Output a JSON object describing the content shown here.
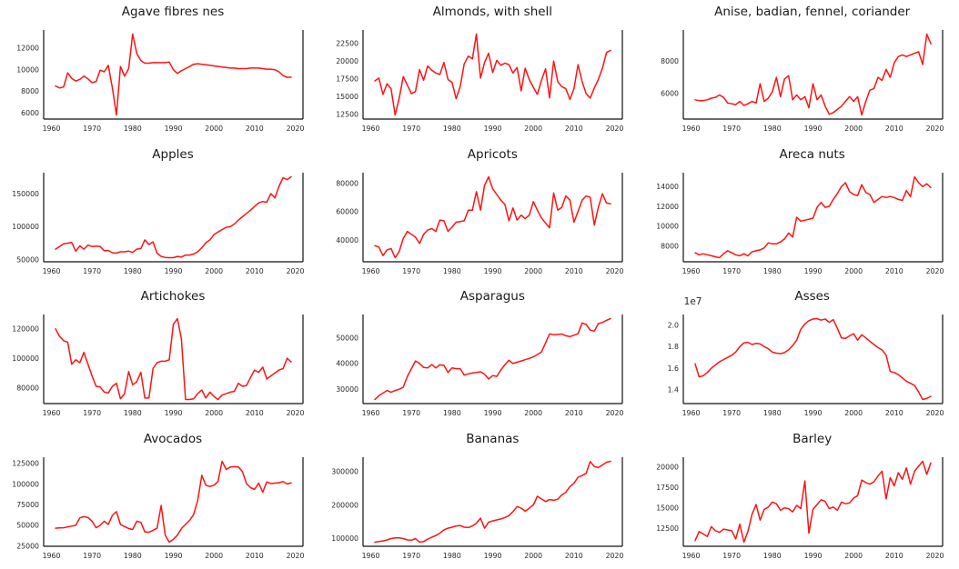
{
  "figure": {
    "background": "#ffffff",
    "line_color": "#ff1212",
    "spine_color": "#111111",
    "tick_color": "#262626",
    "title_color": "#1a1a1a"
  },
  "axis": {
    "x_start": 1961,
    "x_step": 1,
    "xlim": [
      1958.1,
      2021.9
    ],
    "xticks": [
      1960,
      1970,
      1980,
      1990,
      2000,
      2010,
      2020
    ]
  },
  "chart_data": [
    {
      "type": "line",
      "title": "Agave fibres nes",
      "ylim": [
        5425,
        13675
      ],
      "ytick_values": [
        6000,
        8000,
        10000,
        12000
      ],
      "ytick_labels": [
        "6000",
        "8000",
        "10000",
        "12000"
      ],
      "x_start": 1961,
      "values": [
        8500,
        8300,
        8400,
        9700,
        9200,
        8950,
        9100,
        9400,
        9150,
        8800,
        8900,
        9950,
        9800,
        10400,
        8300,
        5800,
        10300,
        9400,
        10100,
        13300,
        11500,
        10850,
        10600,
        10600,
        10650,
        10650,
        10650,
        10650,
        10700,
        10000,
        9650,
        9900,
        10100,
        10300,
        10500,
        10550,
        10500,
        10450,
        10400,
        10350,
        10300,
        10250,
        10200,
        10150,
        10150,
        10100,
        10100,
        10100,
        10150,
        10150,
        10150,
        10100,
        10050,
        10050,
        10000,
        9800,
        9450,
        9300,
        9300
      ]
    },
    {
      "type": "line",
      "title": "Almonds, with shell",
      "ylim": [
        11830,
        24370
      ],
      "ytick_values": [
        12500,
        15000,
        17500,
        20000,
        22500
      ],
      "ytick_labels": [
        "12500",
        "15000",
        "17500",
        "20000",
        "22500"
      ],
      "x_start": 1961,
      "values": [
        17200,
        17600,
        15300,
        16800,
        16100,
        12400,
        14800,
        17800,
        16600,
        15400,
        15700,
        18800,
        17300,
        19300,
        18700,
        18300,
        18100,
        19800,
        17400,
        17000,
        14700,
        16400,
        19600,
        20700,
        20300,
        23800,
        17600,
        19800,
        21100,
        18400,
        20100,
        19400,
        19700,
        19500,
        18300,
        19100,
        15800,
        19000,
        17400,
        16300,
        15300,
        17300,
        18900,
        14800,
        20000,
        17100,
        16400,
        16100,
        14600,
        16100,
        19500,
        17100,
        15400,
        14800,
        16200,
        17400,
        19000,
        21200,
        21500
      ]
    },
    {
      "type": "line",
      "title": "Anise, badian, fennel, coriander",
      "ylim": [
        4397,
        9953
      ],
      "ytick_values": [
        6000,
        8000
      ],
      "ytick_labels": [
        "6000",
        "8000"
      ],
      "x_start": 1961,
      "values": [
        5600,
        5550,
        5550,
        5600,
        5700,
        5750,
        5900,
        5750,
        5400,
        5350,
        5300,
        5500,
        5250,
        5350,
        5500,
        5400,
        6600,
        5500,
        5700,
        6100,
        7000,
        5800,
        6900,
        7100,
        5600,
        5900,
        5600,
        5800,
        5100,
        6600,
        5600,
        5900,
        5200,
        4700,
        4800,
        5000,
        5200,
        5500,
        5800,
        5500,
        5800,
        4650,
        5500,
        6200,
        6300,
        7000,
        6800,
        7500,
        7000,
        7900,
        8300,
        8400,
        8300,
        8400,
        8500,
        8600,
        7800,
        9700,
        9100
      ]
    },
    {
      "type": "line",
      "title": "Apples",
      "ylim": [
        46875,
        181625
      ],
      "ytick_values": [
        50000,
        100000,
        150000
      ],
      "ytick_labels": [
        "50000",
        "100000",
        "150000"
      ],
      "x_start": 1961,
      "values": [
        66000,
        70000,
        74000,
        75000,
        76000,
        63000,
        71000,
        66000,
        72000,
        70000,
        70500,
        70000,
        63500,
        64000,
        60500,
        60000,
        62000,
        62000,
        63000,
        61000,
        66000,
        67000,
        80000,
        73000,
        77000,
        60000,
        55000,
        53500,
        53000,
        53000,
        55000,
        54000,
        57000,
        57000,
        58500,
        62000,
        68000,
        75500,
        80000,
        88000,
        92000,
        95500,
        99000,
        100000,
        104000,
        110000,
        115000,
        120000,
        125000,
        130500,
        136000,
        138000,
        137000,
        150000,
        143500,
        161000,
        174000,
        171000,
        175500
      ]
    },
    {
      "type": "line",
      "title": "Apricots",
      "ylim": [
        24650,
        87350
      ],
      "ytick_values": [
        40000,
        60000,
        80000
      ],
      "ytick_labels": [
        "40000",
        "60000",
        "80000"
      ],
      "x_start": 1961,
      "values": [
        36000,
        35000,
        29000,
        33000,
        34000,
        27500,
        32000,
        41000,
        46000,
        44000,
        42000,
        37500,
        44000,
        47000,
        48000,
        46000,
        54000,
        53500,
        46000,
        49000,
        52500,
        53000,
        53500,
        61000,
        61000,
        74000,
        61000,
        78500,
        84500,
        76000,
        72000,
        68000,
        65000,
        53500,
        62500,
        54000,
        57500,
        55000,
        57500,
        67000,
        61000,
        55500,
        52000,
        48500,
        73000,
        61000,
        63000,
        71000,
        68000,
        52500,
        60000,
        68000,
        71000,
        70000,
        50500,
        63000,
        72500,
        66000,
        65500
      ]
    },
    {
      "type": "line",
      "title": "Areca nuts",
      "ylim": [
        6390,
        15410
      ],
      "ytick_values": [
        8000,
        10000,
        12000,
        14000
      ],
      "ytick_labels": [
        "8000",
        "10000",
        "12000",
        "14000"
      ],
      "x_start": 1961,
      "values": [
        7300,
        7100,
        7200,
        7100,
        7000,
        6900,
        6800,
        7200,
        7500,
        7300,
        7100,
        7000,
        7200,
        7000,
        7400,
        7500,
        7600,
        7800,
        8300,
        8200,
        8200,
        8400,
        8700,
        9300,
        8900,
        10900,
        10500,
        10600,
        10700,
        10800,
        11900,
        12400,
        11900,
        12000,
        12700,
        13300,
        14000,
        14400,
        13500,
        13200,
        13100,
        14200,
        13400,
        13200,
        12400,
        12700,
        13000,
        12900,
        13000,
        12900,
        12700,
        12600,
        13600,
        13000,
        15000,
        14400,
        14000,
        14300,
        13900
      ]
    },
    {
      "type": "line",
      "title": "Artichokes",
      "ylim": [
        69250,
        129750
      ],
      "ytick_values": [
        80000,
        100000,
        120000
      ],
      "ytick_labels": [
        "80000",
        "100000",
        "120000"
      ],
      "x_start": 1961,
      "values": [
        120000,
        115000,
        112000,
        111000,
        96000,
        99000,
        97000,
        104000,
        96000,
        88000,
        81000,
        80500,
        77000,
        76500,
        81000,
        83000,
        72500,
        76000,
        91000,
        82000,
        84000,
        90500,
        73000,
        73000,
        93000,
        97000,
        98000,
        98000,
        99000,
        123000,
        127000,
        113000,
        72000,
        72000,
        72500,
        76000,
        78500,
        73000,
        77000,
        74000,
        72000,
        75000,
        76000,
        77000,
        77500,
        83000,
        81000,
        81500,
        87000,
        92000,
        90500,
        94000,
        86000,
        88000,
        90000,
        92000,
        93000,
        100000,
        97500
      ]
    },
    {
      "type": "line",
      "title": "Asparagus",
      "ylim": [
        24425,
        59075
      ],
      "ytick_values": [
        30000,
        40000,
        50000
      ],
      "ytick_labels": [
        "30000",
        "40000",
        "50000"
      ],
      "x_start": 1961,
      "values": [
        26000,
        27500,
        28500,
        29500,
        28800,
        29500,
        30000,
        30800,
        35000,
        38000,
        41000,
        40000,
        38500,
        38300,
        39600,
        38300,
        39500,
        39300,
        36500,
        38300,
        38000,
        38000,
        35500,
        36000,
        36300,
        36500,
        36800,
        35800,
        34000,
        35300,
        35000,
        37500,
        39500,
        41300,
        40000,
        40500,
        41000,
        41500,
        42000,
        42600,
        43500,
        44500,
        48000,
        51500,
        51200,
        51300,
        51500,
        50800,
        50500,
        51000,
        51600,
        55800,
        55200,
        53000,
        52600,
        55500,
        56000,
        56800,
        57500
      ]
    },
    {
      "type": "line",
      "title": "Asses",
      "offset_text": "1e7",
      "ylim": [
        12725000,
        20975000
      ],
      "ytick_values": [
        14000000,
        16000000,
        18000000,
        20000000
      ],
      "ytick_labels": [
        "1.4",
        "1.6",
        "1.8",
        "2.0"
      ],
      "x_start": 1961,
      "values": [
        16400000,
        15200000,
        15300000,
        15600000,
        16000000,
        16300000,
        16600000,
        16800000,
        17000000,
        17200000,
        17500000,
        18000000,
        18350000,
        18400000,
        18200000,
        18300000,
        18250000,
        18000000,
        17800000,
        17500000,
        17400000,
        17350000,
        17450000,
        17700000,
        18100000,
        18600000,
        19600000,
        20100000,
        20400000,
        20550000,
        20600000,
        20450000,
        20550000,
        20250000,
        20500000,
        19700000,
        18800000,
        18750000,
        19000000,
        19200000,
        18600000,
        19100000,
        18800000,
        18500000,
        18200000,
        17900000,
        17700000,
        17200000,
        15700000,
        15600000,
        15400000,
        15100000,
        14800000,
        14600000,
        14400000,
        13800000,
        13100000,
        13200000,
        13400000
      ]
    },
    {
      "type": "line",
      "title": "Avocados",
      "ylim": [
        24600,
        132400
      ],
      "ytick_values": [
        25000,
        50000,
        75000,
        100000,
        125000
      ],
      "ytick_labels": [
        "25000",
        "50000",
        "75000",
        "100000",
        "125000"
      ],
      "x_start": 1961,
      "values": [
        46500,
        46800,
        47000,
        48000,
        49000,
        50000,
        59000,
        60500,
        59500,
        55000,
        47000,
        50000,
        55000,
        51000,
        62000,
        66500,
        51000,
        48500,
        46000,
        45000,
        55000,
        53500,
        42000,
        41500,
        44000,
        46500,
        74000,
        38000,
        29500,
        33000,
        38000,
        46000,
        51000,
        56000,
        63000,
        80000,
        110500,
        98500,
        97000,
        98500,
        103000,
        127500,
        117500,
        120500,
        121000,
        120500,
        115000,
        100500,
        95500,
        93500,
        101000,
        90000,
        102500,
        100500,
        101000,
        101500,
        103000,
        100000,
        101500
      ]
    },
    {
      "type": "line",
      "title": "Bananas",
      "ylim": [
        75850,
        343150
      ],
      "ytick_values": [
        100000,
        200000,
        300000
      ],
      "ytick_labels": [
        "100000",
        "200000",
        "300000"
      ],
      "x_start": 1961,
      "values": [
        88000,
        90000,
        92000,
        95000,
        99000,
        101000,
        101000,
        99000,
        95000,
        94000,
        99000,
        88000,
        90000,
        97000,
        103000,
        108000,
        115000,
        125000,
        130000,
        133000,
        137000,
        138000,
        133000,
        132000,
        137000,
        145000,
        160000,
        130000,
        148000,
        152000,
        155000,
        158000,
        162000,
        168000,
        180000,
        195000,
        190000,
        181000,
        190000,
        200000,
        226000,
        218000,
        210000,
        216000,
        214000,
        217000,
        230000,
        238000,
        255000,
        265000,
        283000,
        288000,
        295000,
        330000,
        315000,
        312000,
        320000,
        328000,
        331000
      ]
    },
    {
      "type": "line",
      "title": "Barley",
      "ylim": [
        10305,
        21195
      ],
      "ytick_values": [
        12500,
        15000,
        17500,
        20000
      ],
      "ytick_labels": [
        "12500",
        "15000",
        "17500",
        "20000"
      ],
      "x_start": 1961,
      "values": [
        11000,
        12100,
        11800,
        11500,
        12700,
        12200,
        12000,
        12400,
        12300,
        12200,
        11200,
        13000,
        10800,
        12100,
        14200,
        15400,
        13500,
        14800,
        15100,
        15700,
        15500,
        14700,
        15000,
        14900,
        14500,
        15300,
        14900,
        18300,
        11900,
        14800,
        15400,
        16000,
        15800,
        14900,
        15100,
        14700,
        15700,
        15500,
        15600,
        16200,
        16500,
        18400,
        18100,
        17900,
        18200,
        18900,
        19500,
        16100,
        18700,
        17700,
        19300,
        18500,
        19900,
        17900,
        19500,
        20100,
        20700,
        19100,
        20500
      ]
    }
  ]
}
